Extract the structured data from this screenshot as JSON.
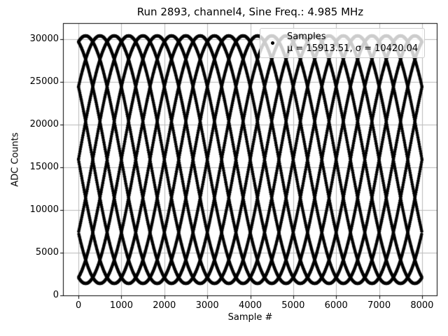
{
  "chart_data": {
    "type": "scatter",
    "title": "Run 2893, channel4, Sine Freq.: 4.985 MHz",
    "xlabel": "Sample #",
    "ylabel": "ADC Counts",
    "x_ticks": [
      0,
      1000,
      2000,
      3000,
      4000,
      5000,
      6000,
      7000,
      8000
    ],
    "y_ticks": [
      0,
      5000,
      10000,
      15000,
      20000,
      25000,
      30000
    ],
    "xlim": [
      -360,
      8360
    ],
    "ylim": [
      -60,
      31900
    ],
    "grid": true,
    "legend": {
      "position": "upper right",
      "marker": "black-dot",
      "lines": [
        "Samples",
        "μ = 15913.51, σ = 10420.04"
      ]
    },
    "stats": {
      "mu": 15913.51,
      "sigma": 10420.04
    },
    "series": [
      {
        "name": "Samples",
        "color": "#000000",
        "marker": "point",
        "model": {
          "kind": "aliased-sine",
          "n_samples": 8000,
          "mean": 15913.51,
          "sigma": 10420.04,
          "amplitude": 14500,
          "cycles_per_sample": 0.0997,
          "phase_rad": 0
        }
      }
    ],
    "colors": {
      "marker": "#000000",
      "grid": "#b8b8b8",
      "spine": "#000000",
      "background": "#ffffff",
      "legend_border": "#cccccc"
    }
  }
}
